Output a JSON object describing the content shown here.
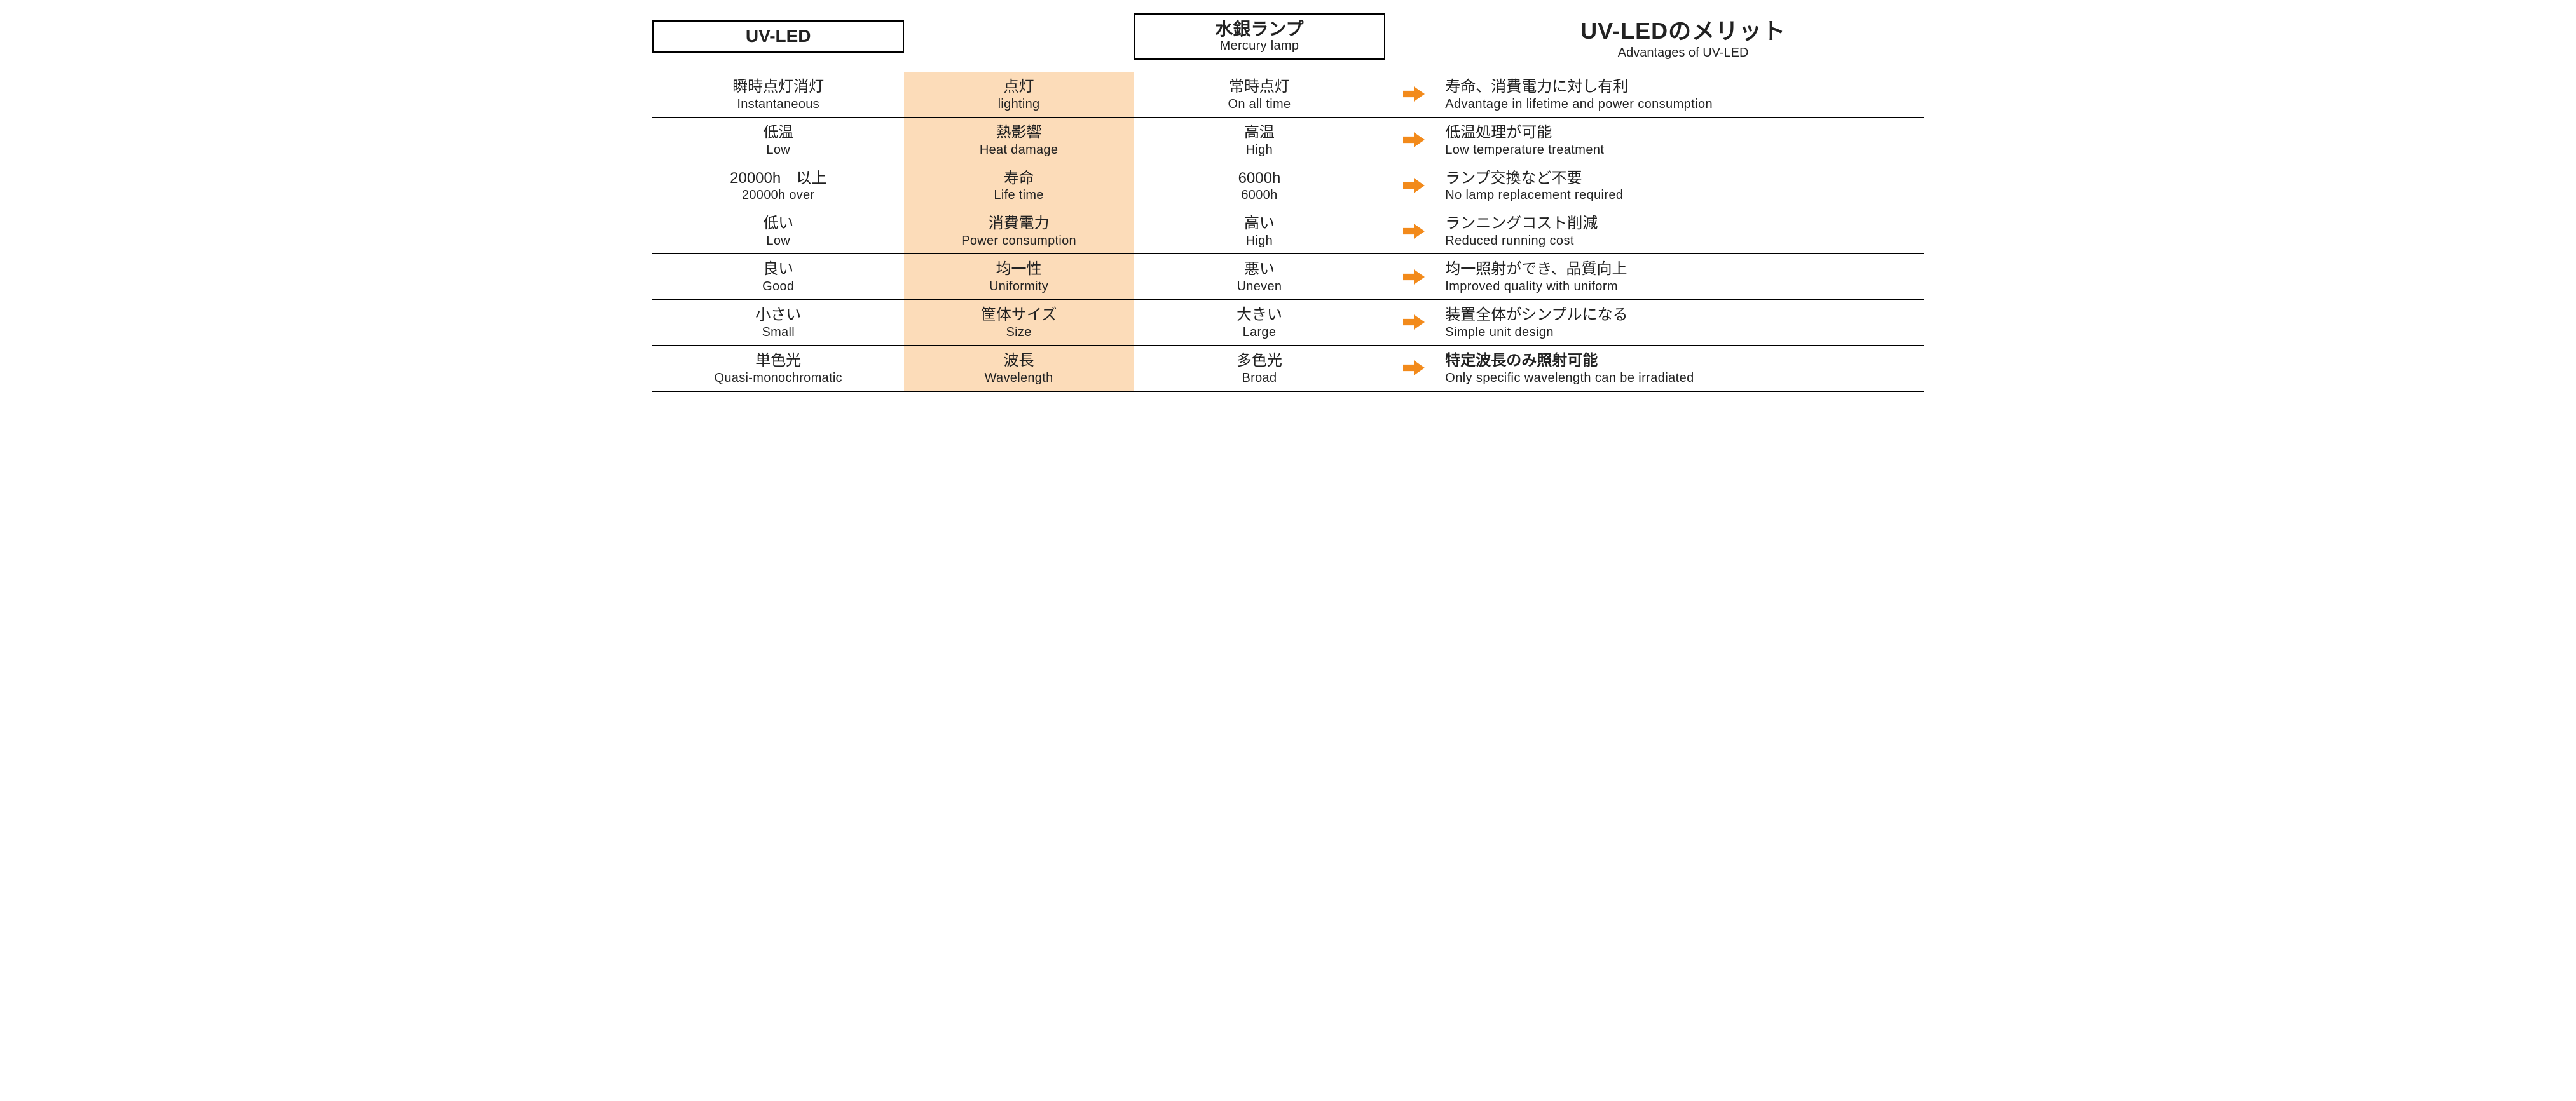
{
  "colors": {
    "attr_bg": "#fcdcb9",
    "arrow": "#f28a1b",
    "border": "#000000",
    "text": "#222222",
    "background": "#ffffff"
  },
  "header": {
    "uvled": {
      "jp": "UV-LED",
      "en": ""
    },
    "mercury": {
      "jp": "水銀ランプ",
      "en": "Mercury lamp"
    },
    "advantages": {
      "jp": "UV-LEDのメリット",
      "en": "Advantages of UV-LED"
    }
  },
  "rows": [
    {
      "uvled": {
        "jp": "瞬時点灯消灯",
        "en": "Instantaneous"
      },
      "attr": {
        "jp": "点灯",
        "en": "lighting"
      },
      "mercury": {
        "jp": "常時点灯",
        "en": "On all time"
      },
      "adv": {
        "jp": "寿命、消費電力に対し有利",
        "en": "Advantage in lifetime and power consumption"
      },
      "adv_bold": false
    },
    {
      "uvled": {
        "jp": "低温",
        "en": "Low"
      },
      "attr": {
        "jp": "熱影響",
        "en": "Heat damage"
      },
      "mercury": {
        "jp": "高温",
        "en": "High"
      },
      "adv": {
        "jp": "低温処理が可能",
        "en": "Low temperature treatment"
      },
      "adv_bold": false
    },
    {
      "uvled": {
        "jp": "20000h　以上",
        "en": "20000h over"
      },
      "attr": {
        "jp": "寿命",
        "en": "Life time"
      },
      "mercury": {
        "jp": "6000h",
        "en": "6000h"
      },
      "adv": {
        "jp": "ランプ交換など不要",
        "en": "No lamp replacement required"
      },
      "adv_bold": false
    },
    {
      "uvled": {
        "jp": "低い",
        "en": "Low"
      },
      "attr": {
        "jp": "消費電力",
        "en": "Power consumption"
      },
      "mercury": {
        "jp": "高い",
        "en": "High"
      },
      "adv": {
        "jp": "ランニングコスト削減",
        "en": "Reduced running cost"
      },
      "adv_bold": false
    },
    {
      "uvled": {
        "jp": "良い",
        "en": "Good"
      },
      "attr": {
        "jp": "均一性",
        "en": "Uniformity"
      },
      "mercury": {
        "jp": "悪い",
        "en": "Uneven"
      },
      "adv": {
        "jp": "均一照射ができ、品質向上",
        "en": "Improved quality with uniform"
      },
      "adv_bold": false
    },
    {
      "uvled": {
        "jp": "小さい",
        "en": "Small"
      },
      "attr": {
        "jp": "筐体サイズ",
        "en": "Size"
      },
      "mercury": {
        "jp": "大きい",
        "en": "Large"
      },
      "adv": {
        "jp": "装置全体がシンプルになる",
        "en": "Simple unit design"
      },
      "adv_bold": false
    },
    {
      "uvled": {
        "jp": "単色光",
        "en": "Quasi-monochromatic"
      },
      "attr": {
        "jp": "波長",
        "en": "Wavelength"
      },
      "mercury": {
        "jp": "多色光",
        "en": "Broad"
      },
      "adv": {
        "jp": "特定波長のみ照射可能",
        "en": "Only specific wavelength can be irradiated"
      },
      "adv_bold": true
    }
  ]
}
